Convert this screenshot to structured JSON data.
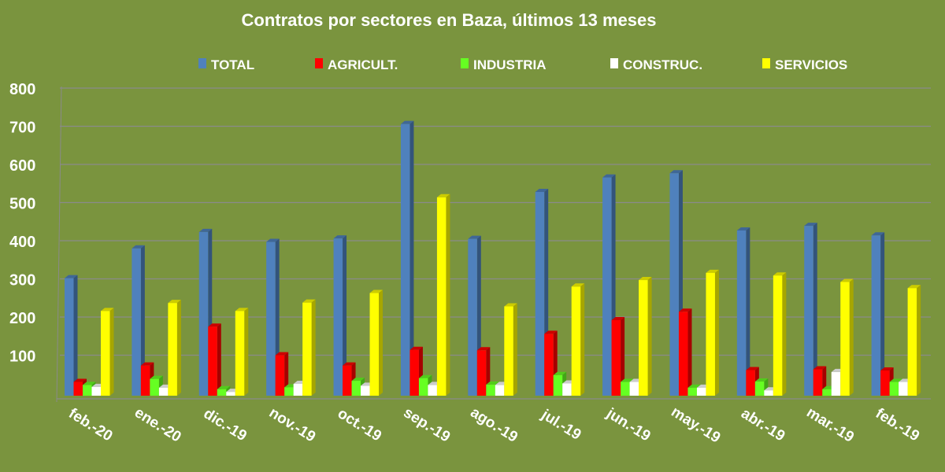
{
  "chart_data": {
    "type": "bar",
    "title": "Contratos por sectores en Baza, últimos 13 meses",
    "xlabel": "",
    "ylabel": "",
    "ylim": [
      0,
      800
    ],
    "yticks": [
      "100",
      "200",
      "300",
      "400",
      "500",
      "600",
      "700",
      "800"
    ],
    "grid": true,
    "legend_position": "top",
    "categories": [
      "feb.-20",
      "ene.-20",
      "dic.-19",
      "nov.-19",
      "oct.-19",
      "sep.-19",
      "ago.-19",
      "jul.-19",
      "jun.-19",
      "may.-19",
      "abr.-19",
      "mar.-19",
      "feb.-19"
    ],
    "series": [
      {
        "name": "TOTAL",
        "color": "#4f81bd",
        "values": [
          308,
          386,
          429,
          403,
          412,
          712,
          411,
          534,
          572,
          583,
          433,
          445,
          420
        ]
      },
      {
        "name": "AGRICULT.",
        "color": "#ff0000",
        "values": [
          36,
          79,
          181,
          106,
          79,
          120,
          119,
          162,
          198,
          220,
          67,
          69,
          66
        ]
      },
      {
        "name": "INDUSTRIA",
        "color": "#66ff22",
        "values": [
          28,
          44,
          17,
          22,
          39,
          46,
          29,
          54,
          36,
          21,
          37,
          17,
          36
        ]
      },
      {
        "name": "CONSTRUC.",
        "color": "#ffffff",
        "values": [
          23,
          21,
          10,
          31,
          26,
          28,
          28,
          32,
          36,
          21,
          14,
          62,
          36
        ]
      },
      {
        "name": "SERVICIOS",
        "color": "#ffff00",
        "values": [
          222,
          243,
          222,
          244,
          269,
          520,
          234,
          286,
          303,
          322,
          315,
          298,
          282
        ]
      }
    ]
  }
}
